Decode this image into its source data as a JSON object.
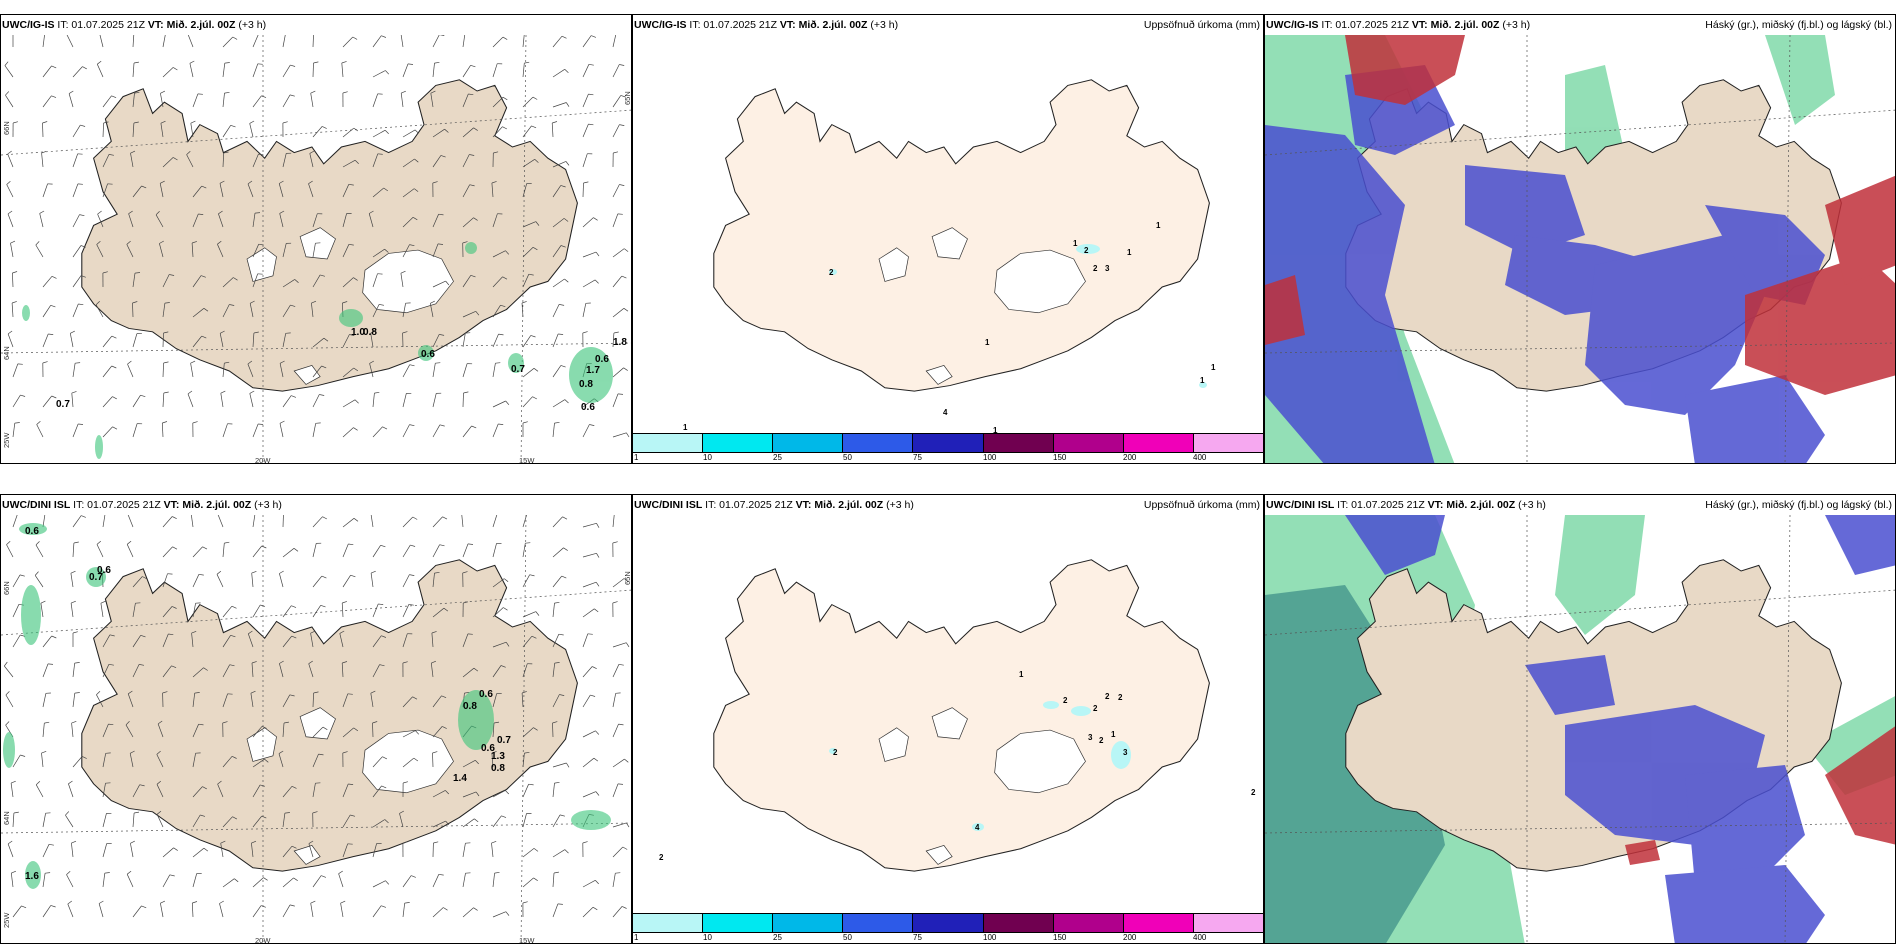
{
  "panels": {
    "top_left": {
      "model": "UWC/IG-IS",
      "it": " IT: 01.07.2025 21Z ",
      "vt_label": "VT:",
      "vt": " Mið. 2.júl. 00Z ",
      "lead": "(+3 h)",
      "right": ""
    },
    "top_mid": {
      "model": "UWC/IG-IS",
      "it": " IT: 01.07.2025 21Z ",
      "vt_label": "VT:",
      "vt": " Mið. 2.júl. 00Z ",
      "lead": "(+3 h)",
      "right": "Uppsöfnuð úrkoma (mm)"
    },
    "top_right": {
      "model": "UWC/IG-IS",
      "it": " IT: 01.07.2025 21Z ",
      "vt_label": "VT:",
      "vt": " Mið. 2.júl. 00Z ",
      "lead": "(+3 h)",
      "right": "Háský (gr.), miðský (fj.bl.) og lágský (bl.)"
    },
    "bot_left": {
      "model": "UWC/DINI ISL",
      "it": " IT: 01.07.2025 21Z ",
      "vt_label": "VT:",
      "vt": " Mið. 2.júl. 00Z ",
      "lead": "(+3 h)",
      "right": ""
    },
    "bot_mid": {
      "model": "UWC/DINI ISL",
      "it": " IT: 01.07.2025 21Z ",
      "vt_label": "VT:",
      "vt": " Mið. 2.júl. 00Z ",
      "lead": "(+3 h)",
      "right": "Uppsöfnuð úrkoma (mm)"
    },
    "bot_right": {
      "model": "UWC/DINI ISL",
      "it": " IT: 01.07.2025 21Z ",
      "vt_label": "VT:",
      "vt": " Mið. 2.júl. 00Z ",
      "lead": "(+3 h)",
      "right": "Háský (gr.), miðský (fj.bl.) og lágský (bl.)"
    }
  },
  "axes": {
    "lon_20w": "20W",
    "lon_15w": "15W",
    "lat_66n": "66N",
    "lat_65n": "65N",
    "lat_64n": "64N",
    "lat_25w": "25W"
  },
  "legend": {
    "labels": [
      "1",
      "10",
      "25",
      "50",
      "75",
      "100",
      "150",
      "200",
      "400"
    ],
    "colors": [
      "#b8f6f6",
      "#00e8f0",
      "#00b8e8",
      "#2d5ae8",
      "#2020b8",
      "#700050",
      "#b0008c",
      "#f000b8",
      "#f6a8f0"
    ]
  },
  "top_left_values": [
    "1.0",
    "0.8",
    "0.6",
    "0.7",
    "1.8",
    "0.6",
    "1.7",
    "0.8",
    "0.6",
    "0.7"
  ],
  "bot_left_values": [
    "0.6",
    "0.6",
    "0.7",
    "0.6",
    "0.8",
    "0.7",
    "0.6",
    "1.3",
    "0.8",
    "1.4",
    "1.6"
  ],
  "top_mid_values": [
    "1",
    "2",
    "2",
    "1",
    "3",
    "2",
    "1",
    "1",
    "1",
    "1",
    "4",
    "1",
    "1"
  ],
  "bot_mid_values": [
    "1",
    "2",
    "2",
    "2",
    "2",
    "3",
    "2",
    "1",
    "3",
    "2",
    "2",
    "4",
    "2"
  ],
  "colors": {
    "land": "#e8d9c6",
    "land_light": "#fdf0e4",
    "cloud_high": "#3ac47a",
    "cloud_mid": "#4a4fd0",
    "cloud_low": "#c0303a"
  }
}
